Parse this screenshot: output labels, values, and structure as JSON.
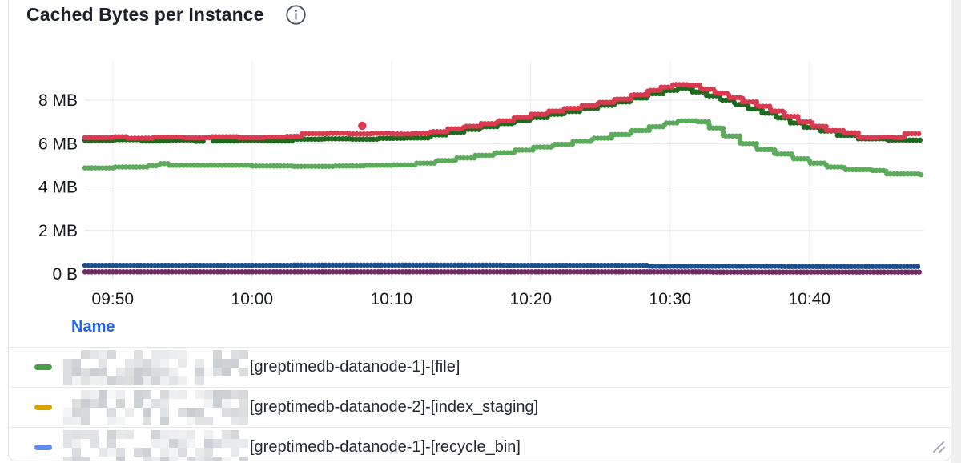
{
  "panel": {
    "title": "Cached Bytes per Instance",
    "info_icon": "info-circle-icon"
  },
  "legend": {
    "name_header": "Name",
    "header_color": "#2563eb",
    "rows": [
      {
        "swatch_color": "#4a9e4a",
        "prefix_redacted": true,
        "label_visible": "[greptimedb-datanode-1]-[file]"
      },
      {
        "swatch_color": "#d8a400",
        "prefix_redacted": true,
        "label_visible": "[greptimedb-datanode-2]-[index_staging]"
      },
      {
        "swatch_color": "#5b8def",
        "prefix_redacted": true,
        "label_visible": "[greptimedb-datanode-1]-[recycle_bin]"
      }
    ]
  },
  "chart_data": {
    "type": "scatter",
    "title": "Cached Bytes per Instance",
    "grid": true,
    "y_unit": "bytes (shown as MB)",
    "x_axis": {
      "start_time": "09:48",
      "end_time": "10:48",
      "ticks": [
        {
          "label": "09:50",
          "t": 2
        },
        {
          "label": "10:00",
          "t": 12
        },
        {
          "label": "10:10",
          "t": 22
        },
        {
          "label": "10:20",
          "t": 32
        },
        {
          "label": "10:30",
          "t": 42
        },
        {
          "label": "10:40",
          "t": 52
        }
      ]
    },
    "y_axis": {
      "range_mb": [
        0,
        8.8
      ],
      "ticks": [
        {
          "label": "0 B",
          "v": 0
        },
        {
          "label": "2 MB",
          "v": 2
        },
        {
          "label": "4 MB",
          "v": 4
        },
        {
          "label": "6 MB",
          "v": 6
        },
        {
          "label": "8 MB",
          "v": 8
        }
      ]
    },
    "series": [
      {
        "name": "navy-flat-series",
        "color": "#1e4e8a",
        "points": [
          [
            0,
            0.4
          ],
          [
            15,
            0.41
          ],
          [
            30,
            0.4
          ],
          [
            40,
            0.4
          ],
          [
            40.5,
            0.35
          ],
          [
            50,
            0.34
          ],
          [
            60,
            0.34
          ]
        ]
      },
      {
        "name": "purple-flat-series",
        "color": "#732a68",
        "points": [
          [
            0,
            0.1
          ],
          [
            30,
            0.1
          ],
          [
            45,
            0.09
          ],
          [
            60,
            0.08
          ]
        ]
      },
      {
        "name": "light-green-series",
        "color": "#5bab5b",
        "points": [
          [
            0,
            4.88
          ],
          [
            2,
            4.92
          ],
          [
            4.5,
            4.98
          ],
          [
            5.3,
            5.08
          ],
          [
            6,
            5.0
          ],
          [
            9,
            5.0
          ],
          [
            12,
            4.97
          ],
          [
            15,
            4.95
          ],
          [
            18,
            4.97
          ],
          [
            20,
            5.0
          ],
          [
            22,
            5.02
          ],
          [
            23.8,
            5.1
          ],
          [
            25.2,
            5.22
          ],
          [
            26.6,
            5.34
          ],
          [
            28,
            5.46
          ],
          [
            29.4,
            5.58
          ],
          [
            30.8,
            5.7
          ],
          [
            32.2,
            5.84
          ],
          [
            33.6,
            5.97
          ],
          [
            35,
            6.1
          ],
          [
            36.4,
            6.25
          ],
          [
            37.8,
            6.42
          ],
          [
            39.2,
            6.6
          ],
          [
            40.5,
            6.78
          ],
          [
            41.6,
            6.95
          ],
          [
            42.6,
            7.05
          ],
          [
            44,
            7.0
          ],
          [
            44.8,
            6.72
          ],
          [
            45.8,
            6.35
          ],
          [
            47,
            6.0
          ],
          [
            48.2,
            5.72
          ],
          [
            49.5,
            5.52
          ],
          [
            50.8,
            5.3
          ],
          [
            52,
            5.1
          ],
          [
            53.2,
            4.92
          ],
          [
            54.5,
            4.8
          ],
          [
            56.5,
            4.76
          ],
          [
            57.5,
            4.6
          ],
          [
            60,
            4.55
          ]
        ]
      },
      {
        "name": "dark-green-series",
        "color": "#1d691d",
        "points": [
          [
            0,
            6.15
          ],
          [
            2,
            6.18
          ],
          [
            4,
            6.12
          ],
          [
            6,
            6.16
          ],
          [
            7.8,
            6.1
          ],
          [
            8.5,
            6.28
          ],
          [
            9.2,
            6.12
          ],
          [
            11,
            6.15
          ],
          [
            13,
            6.12
          ],
          [
            15,
            6.2
          ],
          [
            17,
            6.22
          ],
          [
            19,
            6.2
          ],
          [
            21,
            6.24
          ],
          [
            23,
            6.26
          ],
          [
            24.8,
            6.4
          ],
          [
            26,
            6.52
          ],
          [
            27.2,
            6.65
          ],
          [
            28.4,
            6.78
          ],
          [
            29.6,
            6.92
          ],
          [
            30.8,
            7.06
          ],
          [
            32,
            7.2
          ],
          [
            33.2,
            7.35
          ],
          [
            34.4,
            7.48
          ],
          [
            35.6,
            7.62
          ],
          [
            36.8,
            7.76
          ],
          [
            38,
            7.92
          ],
          [
            39.2,
            8.1
          ],
          [
            40.4,
            8.3
          ],
          [
            41.5,
            8.45
          ],
          [
            42.5,
            8.55
          ],
          [
            43.6,
            8.38
          ],
          [
            44.6,
            8.2
          ],
          [
            45.6,
            8.0
          ],
          [
            46.6,
            7.8
          ],
          [
            47.6,
            7.6
          ],
          [
            48.6,
            7.4
          ],
          [
            49.6,
            7.18
          ],
          [
            50.6,
            6.95
          ],
          [
            51.6,
            6.75
          ],
          [
            52.8,
            6.58
          ],
          [
            54,
            6.38
          ],
          [
            55.5,
            6.22
          ],
          [
            57.5,
            6.16
          ],
          [
            60,
            6.15
          ]
        ]
      },
      {
        "name": "red-series",
        "color": "#d93a4f",
        "points": [
          [
            0,
            6.28
          ],
          [
            2,
            6.32
          ],
          [
            3,
            6.25
          ],
          [
            5,
            6.3
          ],
          [
            7,
            6.27
          ],
          [
            9,
            6.32
          ],
          [
            11,
            6.28
          ],
          [
            13,
            6.3
          ],
          [
            14.5,
            6.33
          ],
          [
            15.5,
            6.45
          ],
          [
            17.5,
            6.47
          ],
          [
            19,
            6.44
          ],
          [
            20.5,
            6.47
          ],
          [
            22,
            6.44
          ],
          [
            23.5,
            6.47
          ],
          [
            24.8,
            6.55
          ],
          [
            26,
            6.68
          ],
          [
            27.2,
            6.8
          ],
          [
            28.4,
            6.92
          ],
          [
            29.6,
            7.05
          ],
          [
            30.8,
            7.2
          ],
          [
            32,
            7.35
          ],
          [
            33.2,
            7.5
          ],
          [
            34.4,
            7.62
          ],
          [
            35.6,
            7.75
          ],
          [
            36.8,
            7.9
          ],
          [
            38,
            8.05
          ],
          [
            39.2,
            8.25
          ],
          [
            40.4,
            8.45
          ],
          [
            41.3,
            8.6
          ],
          [
            42.2,
            8.72
          ],
          [
            43.2,
            8.68
          ],
          [
            44.2,
            8.5
          ],
          [
            45.2,
            8.32
          ],
          [
            46.2,
            8.12
          ],
          [
            47.2,
            7.92
          ],
          [
            48.2,
            7.72
          ],
          [
            49.2,
            7.5
          ],
          [
            50.2,
            7.25
          ],
          [
            51.2,
            7.0
          ],
          [
            52.2,
            6.8
          ],
          [
            53.2,
            6.6
          ],
          [
            54.5,
            6.5
          ],
          [
            55.5,
            6.28
          ],
          [
            57,
            6.3
          ],
          [
            58,
            6.28
          ],
          [
            58.8,
            6.45
          ],
          [
            60,
            6.47
          ]
        ]
      }
    ],
    "outlier_point": {
      "series": "red-series",
      "color": "#d93a4f",
      "t": 19.9,
      "value_mb": 6.82
    }
  }
}
